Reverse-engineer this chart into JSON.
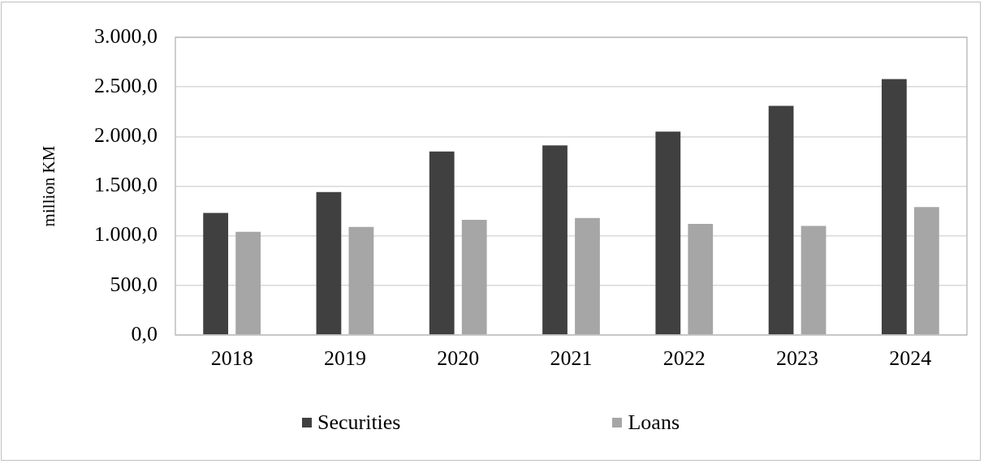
{
  "chart_data": {
    "type": "bar",
    "ylabel": "million KM",
    "categories": [
      "2018",
      "2019",
      "2020",
      "2021",
      "2022",
      "2023",
      "2024"
    ],
    "series": [
      {
        "name": "Securities",
        "color": "#404040",
        "values": [
          1230,
          1440,
          1850,
          1910,
          2050,
          2310,
          2580
        ]
      },
      {
        "name": "Loans",
        "color": "#a6a6a6",
        "values": [
          1040,
          1090,
          1160,
          1180,
          1120,
          1100,
          1290
        ]
      }
    ],
    "ylim": [
      0,
      3000
    ],
    "yticks": [
      {
        "value": 0,
        "label": "0,0"
      },
      {
        "value": 500,
        "label": "500,0"
      },
      {
        "value": 1000,
        "label": "1.000,0"
      },
      {
        "value": 1500,
        "label": "1.500,0"
      },
      {
        "value": 2000,
        "label": "2.000,0"
      },
      {
        "value": 2500,
        "label": "2.500,0"
      },
      {
        "value": 3000,
        "label": "3.000,0"
      }
    ],
    "grid": "y",
    "legend": "bottom"
  }
}
